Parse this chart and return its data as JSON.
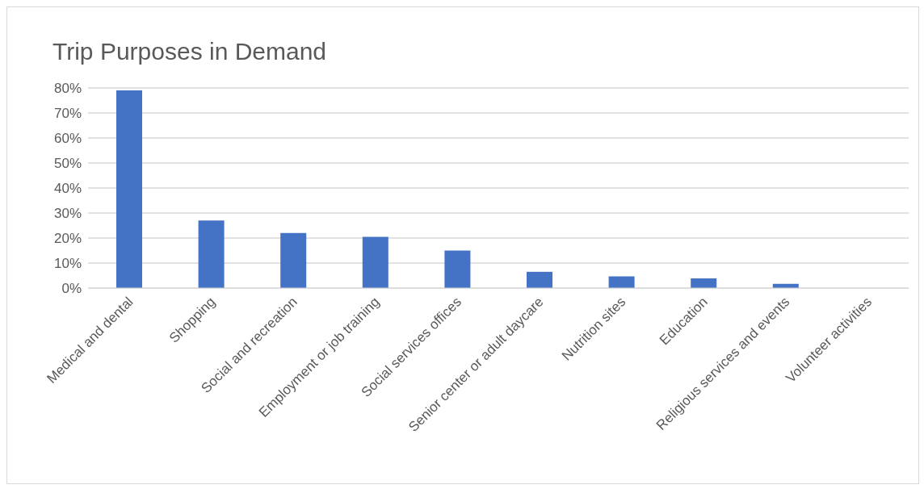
{
  "chart_data": {
    "type": "bar",
    "title": "Trip Purposes in Demand",
    "categories": [
      "Medical and dental",
      "Shopping",
      "Social and recreation",
      "Employment or job training",
      "Social services offices",
      "Senior center or adult daycare",
      "Nutrition sites",
      "Education",
      "Religious services and events",
      "Volunteer activities"
    ],
    "values": [
      79,
      27,
      22,
      20.5,
      15,
      6.5,
      4.7,
      3.9,
      1.7,
      0
    ],
    "color": "#4472c4",
    "ylim": [
      0,
      80
    ],
    "yticks": [
      {
        "value": 0,
        "label": "0%"
      },
      {
        "value": 10,
        "label": "10%"
      },
      {
        "value": 20,
        "label": "20%"
      },
      {
        "value": 30,
        "label": "30%"
      },
      {
        "value": 40,
        "label": "40%"
      },
      {
        "value": 50,
        "label": "50%"
      },
      {
        "value": 60,
        "label": "60%"
      },
      {
        "value": 70,
        "label": "70%"
      },
      {
        "value": 80,
        "label": "80%"
      }
    ],
    "grid": "y",
    "legend": false
  }
}
